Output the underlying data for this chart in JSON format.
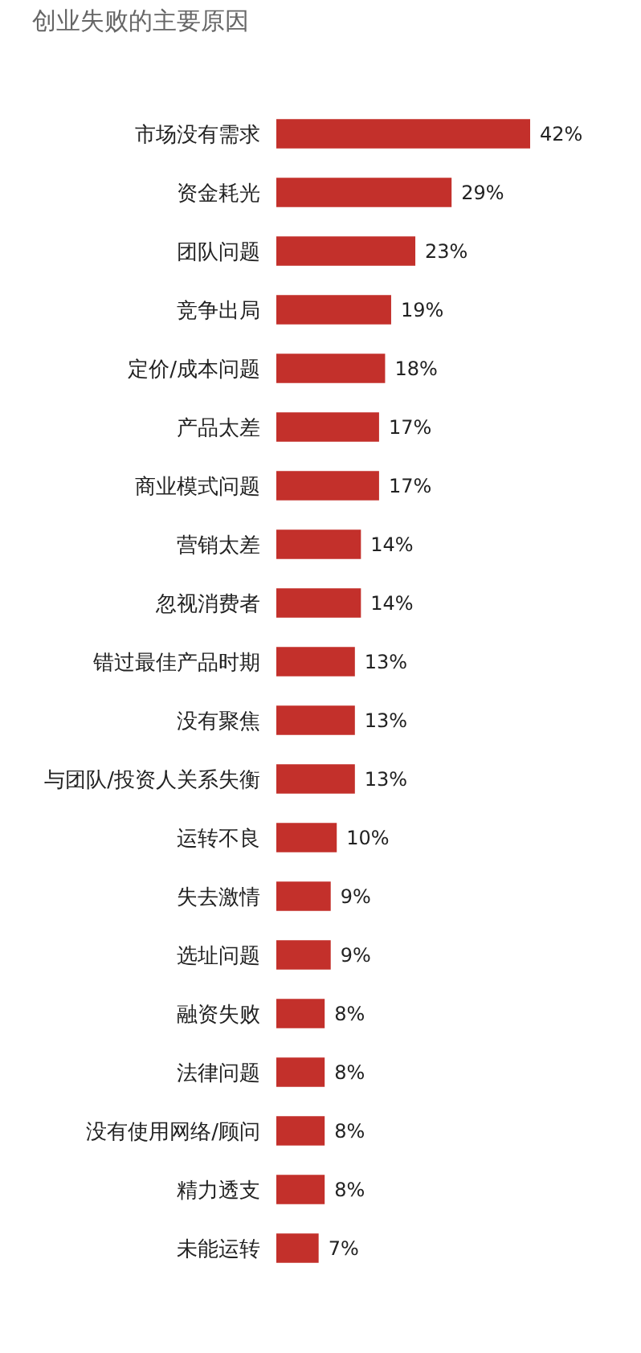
{
  "chart_data": {
    "type": "bar",
    "orientation": "horizontal",
    "title": "创业失败的主要原因",
    "categories": [
      "市场没有需求",
      "资金耗光",
      "团队问题",
      "竞争出局",
      "定价/成本问题",
      "产品太差",
      "商业模式问题",
      "营销太差",
      "忽视消费者",
      "错过最佳产品时期",
      "没有聚焦",
      "与团队/投资人关系失衡",
      "运转不良",
      "失去激情",
      "选址问题",
      "融资失败",
      "法律问题",
      "没有使用网络/顾问",
      "精力透支",
      "未能运转"
    ],
    "values": [
      42,
      29,
      23,
      19,
      18,
      17,
      17,
      14,
      14,
      13,
      13,
      13,
      10,
      9,
      9,
      8,
      8,
      8,
      8,
      7
    ],
    "value_labels": [
      "42%",
      "29%",
      "23%",
      "19%",
      "18%",
      "17%",
      "17%",
      "14%",
      "14%",
      "13%",
      "13%",
      "13%",
      "10%",
      "9%",
      "9%",
      "8%",
      "8%",
      "8%",
      "8%",
      "7%"
    ],
    "color": "#c3302b"
  }
}
